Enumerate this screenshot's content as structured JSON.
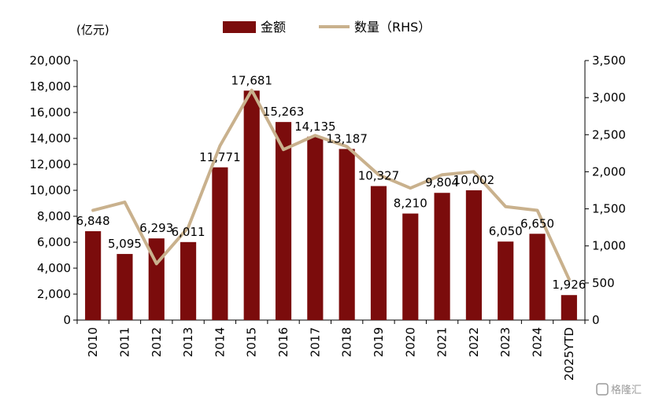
{
  "chart_data": {
    "type": "bar",
    "categories": [
      "2010",
      "2011",
      "2012",
      "2013",
      "2014",
      "2015",
      "2016",
      "2017",
      "2018",
      "2019",
      "2020",
      "2021",
      "2022",
      "2023",
      "2024",
      "2025YTD"
    ],
    "series": [
      {
        "name": "金额",
        "type": "bar",
        "axis": "left",
        "values": [
          6848,
          5095,
          6293,
          6011,
          11771,
          17681,
          15263,
          14135,
          13187,
          10327,
          8210,
          9804,
          10002,
          6050,
          6650,
          1926
        ],
        "labels": [
          "6,848",
          "5,095",
          "6,293",
          "6,011",
          "11,771",
          "17,681",
          "15,263",
          "14,135",
          "13,187",
          "10,327",
          "8,210",
          "9,804",
          "10,002",
          "6,050",
          "6,650",
          "1,926"
        ],
        "color": "#7b0c0c"
      },
      {
        "name": "数量（RHS）",
        "type": "line",
        "axis": "right",
        "values": [
          1480,
          1590,
          760,
          1250,
          2350,
          3100,
          2300,
          2490,
          2340,
          1960,
          1780,
          1960,
          2000,
          1530,
          1480,
          550
        ],
        "color": "#c9b18d"
      }
    ],
    "unit_label": "(亿元)",
    "ylim": [
      0,
      20000
    ],
    "y_ticks": [
      "0",
      "2,000",
      "4,000",
      "6,000",
      "8,000",
      "10,000",
      "12,000",
      "14,000",
      "16,000",
      "18,000",
      "20,000"
    ],
    "y2lim": [
      0,
      3500
    ],
    "y2_ticks": [
      "0",
      "500",
      "1,000",
      "1,500",
      "2,000",
      "2,500",
      "3,000",
      "3,500"
    ],
    "legend_position": "top",
    "grid": false
  },
  "watermark": {
    "text": "格隆汇"
  }
}
